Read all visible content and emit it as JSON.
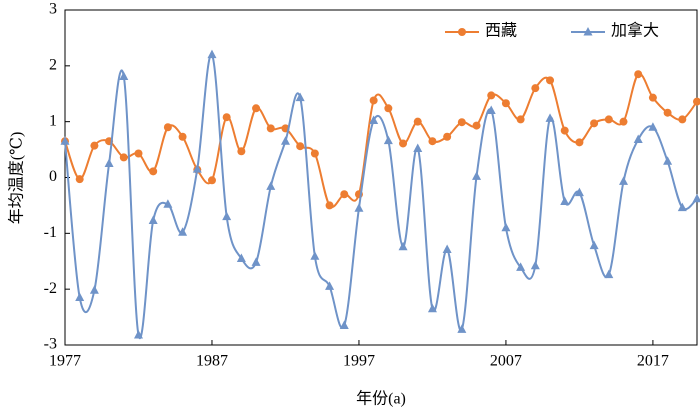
{
  "chart_data": {
    "type": "line",
    "x": [
      1977,
      1978,
      1979,
      1980,
      1981,
      1982,
      1983,
      1984,
      1985,
      1986,
      1987,
      1988,
      1989,
      1990,
      1991,
      1992,
      1993,
      1994,
      1995,
      1996,
      1997,
      1998,
      1999,
      2000,
      2001,
      2002,
      2003,
      2004,
      2005,
      2006,
      2007,
      2008,
      2009,
      2010,
      2011,
      2012,
      2013,
      2014,
      2015,
      2016,
      2017,
      2018,
      2019,
      2020
    ],
    "series": [
      {
        "name": "西藏",
        "color": "#ed7d31",
        "marker": "circle",
        "values": [
          0.65,
          -0.03,
          0.57,
          0.65,
          0.36,
          0.43,
          0.11,
          0.9,
          0.73,
          0.14,
          -0.05,
          1.08,
          0.47,
          1.24,
          0.88,
          0.88,
          0.56,
          0.43,
          -0.5,
          -0.3,
          -0.3,
          1.38,
          1.24,
          0.61,
          1.0,
          0.65,
          0.73,
          0.99,
          0.93,
          1.47,
          1.33,
          1.04,
          1.6,
          1.74,
          0.84,
          0.63,
          0.97,
          1.04,
          1.0,
          1.85,
          1.43,
          1.16,
          1.04,
          1.36
        ]
      },
      {
        "name": "加拿大",
        "color": "#6f93c8",
        "marker": "triangle",
        "values": [
          0.65,
          -2.15,
          -2.02,
          0.25,
          1.81,
          -2.82,
          -0.77,
          -0.48,
          -0.98,
          0.15,
          2.2,
          -0.7,
          -1.45,
          -1.52,
          -0.16,
          0.65,
          1.43,
          -1.41,
          -1.95,
          -2.65,
          -0.55,
          1.02,
          0.66,
          -1.24,
          0.52,
          -2.35,
          -1.29,
          -2.72,
          0.02,
          1.2,
          -0.9,
          -1.61,
          -1.58,
          1.06,
          -0.43,
          -0.27,
          -1.22,
          -1.74,
          -0.07,
          0.68,
          0.9,
          0.29,
          -0.54,
          -0.38
        ]
      }
    ],
    "xlim": [
      1977,
      2020
    ],
    "xticks": [
      1977,
      1987,
      1997,
      2007,
      2017
    ],
    "ylim": [
      -3,
      3
    ],
    "yticks": [
      -3,
      -2,
      -1,
      0,
      1,
      2,
      3
    ],
    "xlabel": "年份(a)",
    "ylabel": "年均温度(℃)",
    "legend": "upper right"
  }
}
